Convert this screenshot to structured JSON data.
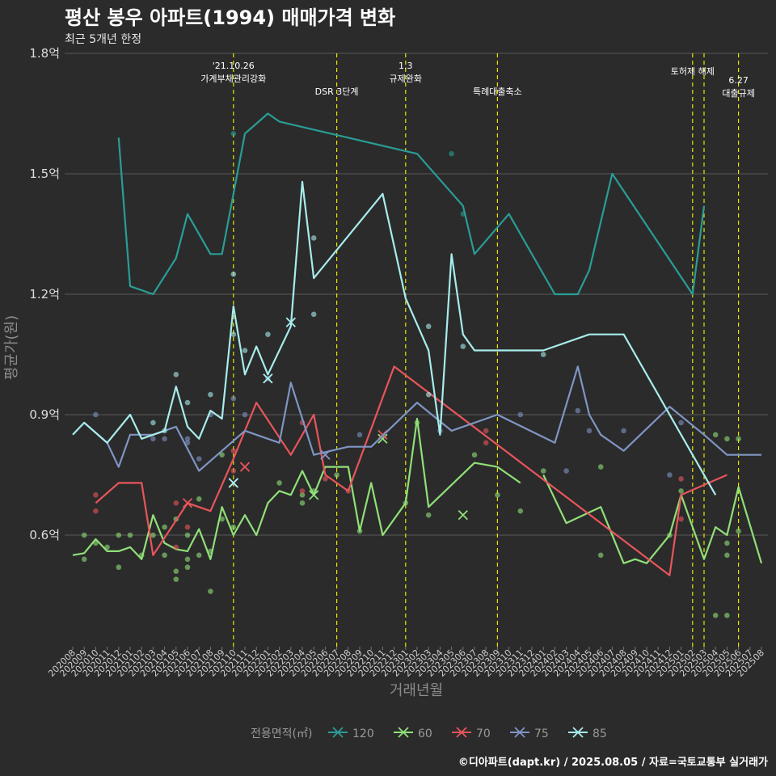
{
  "chart_data": {
    "type": "line",
    "title": "평산 봉우 아파트(1994) 매매가격 변화",
    "subtitle": "최근 5개년 한정",
    "xlabel": "거래년월",
    "ylabel": "평균가(원)",
    "caption": "©디아파트(dapt.kr) / 2025.08.05 / 자료=국토교통부 실거래가",
    "y_ticks": [
      {
        "value": 0.6,
        "label": "0.6억"
      },
      {
        "value": 0.9,
        "label": "0.9억"
      },
      {
        "value": 1.2,
        "label": "1.2억"
      },
      {
        "value": 1.5,
        "label": "1.5억"
      },
      {
        "value": 1.8,
        "label": "1.8억"
      }
    ],
    "ylim": [
      0.34,
      1.8
    ],
    "x_months": [
      "202008",
      "202009",
      "202010",
      "202011",
      "202012",
      "202101",
      "202102",
      "202103",
      "202104",
      "202105",
      "202106",
      "202107",
      "202108",
      "202109",
      "202110",
      "202111",
      "202112",
      "202201",
      "202202",
      "202203",
      "202204",
      "202205",
      "202206",
      "202207",
      "202208",
      "202209",
      "202210",
      "202211",
      "202212",
      "202301",
      "202302",
      "202303",
      "202304",
      "202305",
      "202306",
      "202307",
      "202308",
      "202309",
      "202310",
      "202311",
      "202312",
      "202401",
      "202402",
      "202403",
      "202404",
      "202405",
      "202406",
      "202407",
      "202408",
      "202409",
      "202410",
      "202411",
      "202412",
      "202501",
      "202502",
      "202503",
      "202504",
      "202505",
      "202506",
      "202507",
      "202508"
    ],
    "grid": true,
    "legend": {
      "title": "전용면적(㎡)",
      "position": "bottom"
    },
    "annotations": [
      {
        "x": "202110",
        "label": "'21.10.26\n가계부채관리강화",
        "level": 0
      },
      {
        "x": "202207",
        "label": "DSR 3단계",
        "level": 1
      },
      {
        "x": "202301",
        "label": "1.3\n규제완화",
        "level": 0
      },
      {
        "x": "202309",
        "label": "특례대출축소",
        "level": 1
      },
      {
        "x": "202502",
        "label": "토허제 해제",
        "level": 0
      },
      {
        "x": "202503",
        "label": "",
        "level": 0
      },
      {
        "x": "202506",
        "label": "6.27\n대출규제",
        "level": 2
      }
    ],
    "series": [
      {
        "name": "120",
        "color": "#2a9d96",
        "line": [
          [
            "202012",
            1.59
          ],
          [
            "202101",
            1.22
          ],
          [
            "202103",
            1.2
          ],
          [
            "202105",
            1.29
          ],
          [
            "202106",
            1.4
          ],
          [
            "202108",
            1.3
          ],
          [
            "202109",
            1.3
          ],
          [
            "202111",
            1.6
          ],
          [
            "202201",
            1.65
          ],
          [
            "202202",
            1.63
          ],
          [
            "202205",
            1.61
          ],
          [
            "202302",
            1.55
          ],
          [
            "202306",
            1.42
          ],
          [
            "202307",
            1.3
          ],
          [
            "202310",
            1.4
          ],
          [
            "202402",
            1.2
          ],
          [
            "202404",
            1.2
          ],
          [
            "202405",
            1.26
          ],
          [
            "202407",
            1.5
          ],
          [
            "202502",
            1.2
          ],
          [
            "202503",
            1.42
          ]
        ],
        "points": [
          [
            "202110",
            1.6
          ],
          [
            "202305",
            1.55
          ],
          [
            "202306",
            1.4
          ]
        ],
        "crosses": []
      },
      {
        "name": "60",
        "color": "#90e078",
        "line": [
          [
            "202008",
            0.55
          ],
          [
            "202009",
            0.555
          ],
          [
            "202010",
            0.59
          ],
          [
            "202011",
            0.56
          ],
          [
            "202012",
            0.56
          ],
          [
            "202101",
            0.57
          ],
          [
            "202102",
            0.54
          ],
          [
            "202103",
            0.65
          ],
          [
            "202104",
            0.58
          ],
          [
            "202105",
            0.565
          ],
          [
            "202106",
            0.56
          ],
          [
            "202107",
            0.615
          ],
          [
            "202108",
            0.54
          ],
          [
            "202109",
            0.67
          ],
          [
            "202110",
            0.6
          ],
          [
            "202111",
            0.65
          ],
          [
            "202112",
            0.6
          ],
          [
            "202201",
            0.68
          ],
          [
            "202202",
            0.71
          ],
          [
            "202203",
            0.7
          ],
          [
            "202204",
            0.76
          ],
          [
            "202205",
            0.7
          ],
          [
            "202206",
            0.77
          ],
          [
            "202207",
            0.77
          ],
          [
            "202208",
            0.77
          ],
          [
            "202209",
            0.61
          ],
          [
            "202210",
            0.73
          ],
          [
            "202211",
            0.6
          ],
          [
            "202301",
            0.68
          ],
          [
            "202302",
            0.89
          ],
          [
            "202303",
            0.67
          ],
          [
            "202307",
            0.78
          ],
          [
            "202309",
            0.77
          ],
          [
            "202311",
            0.73
          ]
        ],
        "line2": [
          [
            "202401",
            0.75
          ],
          [
            "202403",
            0.63
          ],
          [
            "202406",
            0.67
          ],
          [
            "202408",
            0.53
          ],
          [
            "202409",
            0.54
          ],
          [
            "202410",
            0.53
          ],
          [
            "202412",
            0.6
          ],
          [
            "202501",
            0.7
          ],
          [
            "202503",
            0.54
          ],
          [
            "202504",
            0.62
          ],
          [
            "202505",
            0.6
          ],
          [
            "202506",
            0.72
          ],
          [
            "202508",
            0.53
          ]
        ],
        "points": [
          [
            "202009",
            0.54
          ],
          [
            "202009",
            0.6
          ],
          [
            "202010",
            0.58
          ],
          [
            "202011",
            0.57
          ],
          [
            "202012",
            0.52
          ],
          [
            "202012",
            0.6
          ],
          [
            "202101",
            0.6
          ],
          [
            "202102",
            0.55
          ],
          [
            "202103",
            0.6
          ],
          [
            "202104",
            0.55
          ],
          [
            "202104",
            0.62
          ],
          [
            "202105",
            0.49
          ],
          [
            "202105",
            0.51
          ],
          [
            "202105",
            0.64
          ],
          [
            "202106",
            0.52
          ],
          [
            "202106",
            0.54
          ],
          [
            "202106",
            0.6
          ],
          [
            "202107",
            0.55
          ],
          [
            "202107",
            0.69
          ],
          [
            "202108",
            0.46
          ],
          [
            "202108",
            0.56
          ],
          [
            "202109",
            0.64
          ],
          [
            "202109",
            0.8
          ],
          [
            "202110",
            0.62
          ],
          [
            "202202",
            0.73
          ],
          [
            "202204",
            0.68
          ],
          [
            "202204",
            0.7
          ],
          [
            "202205",
            0.71
          ],
          [
            "202207",
            0.75
          ],
          [
            "202209",
            0.61
          ],
          [
            "202301",
            0.68
          ],
          [
            "202302",
            0.88
          ],
          [
            "202303",
            0.65
          ],
          [
            "202307",
            0.8
          ],
          [
            "202309",
            0.7
          ],
          [
            "202311",
            0.66
          ],
          [
            "202401",
            0.76
          ],
          [
            "202406",
            0.55
          ],
          [
            "202406",
            0.77
          ],
          [
            "202412",
            0.6
          ],
          [
            "202501",
            0.71
          ],
          [
            "202504",
            0.4
          ],
          [
            "202504",
            0.85
          ],
          [
            "202505",
            0.4
          ],
          [
            "202505",
            0.55
          ],
          [
            "202505",
            0.84
          ],
          [
            "202505",
            0.58
          ],
          [
            "202506",
            0.84
          ],
          [
            "202506",
            0.61
          ]
        ],
        "crosses": [
          [
            "202205",
            0.7
          ],
          [
            "202306",
            0.65
          ],
          [
            "202211",
            0.84
          ]
        ]
      },
      {
        "name": "70",
        "color": "#e8555b",
        "line": [
          [
            "202010",
            0.68
          ],
          [
            "202012",
            0.73
          ],
          [
            "202102",
            0.73
          ],
          [
            "202103",
            0.55
          ],
          [
            "202106",
            0.68
          ],
          [
            "202108",
            0.66
          ],
          [
            "202110",
            0.79
          ],
          [
            "202112",
            0.93
          ],
          [
            "202203",
            0.8
          ],
          [
            "202205",
            0.9
          ],
          [
            "202206",
            0.75
          ],
          [
            "202208",
            0.71
          ],
          [
            "202212",
            1.02
          ],
          [
            "202412",
            0.5
          ],
          [
            "202501",
            0.7
          ],
          [
            "202505",
            0.75
          ]
        ],
        "points": [
          [
            "202010",
            0.66
          ],
          [
            "202010",
            0.7
          ],
          [
            "202105",
            0.68
          ],
          [
            "202105",
            0.57
          ],
          [
            "202106",
            0.62
          ],
          [
            "202110",
            0.76
          ],
          [
            "202110",
            0.81
          ],
          [
            "202204",
            0.71
          ],
          [
            "202204",
            0.88
          ],
          [
            "202206",
            0.74
          ],
          [
            "202208",
            0.71
          ],
          [
            "202308",
            0.83
          ],
          [
            "202308",
            0.86
          ],
          [
            "202501",
            0.64
          ],
          [
            "202501",
            0.74
          ]
        ],
        "crosses": [
          [
            "202106",
            0.68
          ],
          [
            "202111",
            0.77
          ],
          [
            "202206",
            0.8
          ],
          [
            "202211",
            0.85
          ]
        ]
      },
      {
        "name": "75",
        "color": "#7f95c4",
        "line": [
          [
            "202009",
            0.88
          ],
          [
            "202011",
            0.83
          ],
          [
            "202012",
            0.77
          ],
          [
            "202101",
            0.85
          ],
          [
            "202102",
            0.85
          ],
          [
            "202103",
            0.85
          ],
          [
            "202105",
            0.87
          ],
          [
            "202107",
            0.76
          ],
          [
            "202109",
            0.81
          ],
          [
            "202111",
            0.86
          ],
          [
            "202202",
            0.83
          ],
          [
            "202203",
            0.98
          ],
          [
            "202205",
            0.8
          ],
          [
            "202208",
            0.82
          ],
          [
            "202209",
            0.82
          ],
          [
            "202210",
            0.82
          ],
          [
            "202302",
            0.93
          ],
          [
            "202305",
            0.86
          ],
          [
            "202309",
            0.9
          ],
          [
            "202402",
            0.83
          ],
          [
            "202404",
            1.02
          ],
          [
            "202405",
            0.9
          ],
          [
            "202406",
            0.85
          ],
          [
            "202408",
            0.81
          ],
          [
            "202412",
            0.92
          ],
          [
            "202503",
            0.85
          ],
          [
            "202505",
            0.8
          ],
          [
            "202508",
            0.8
          ]
        ],
        "points": [
          [
            "202010",
            0.9
          ],
          [
            "202103",
            0.84
          ],
          [
            "202104",
            0.84
          ],
          [
            "202106",
            0.84
          ],
          [
            "202106",
            0.83
          ],
          [
            "202107",
            0.79
          ],
          [
            "202108",
            0.9
          ],
          [
            "202110",
            0.94
          ],
          [
            "202111",
            0.9
          ],
          [
            "202201",
            0.99
          ],
          [
            "202209",
            0.85
          ],
          [
            "202304",
            0.86
          ],
          [
            "202311",
            0.9
          ],
          [
            "202403",
            0.76
          ],
          [
            "202404",
            0.91
          ],
          [
            "202405",
            0.86
          ],
          [
            "202408",
            0.86
          ],
          [
            "202412",
            0.75
          ],
          [
            "202501",
            0.88
          ]
        ],
        "crosses": [
          [
            "202110",
            0.73
          ],
          [
            "202201",
            0.99
          ],
          [
            "202203",
            1.13
          ],
          [
            "202206",
            0.8
          ]
        ]
      },
      {
        "name": "85",
        "color": "#a8ecec",
        "line": [
          [
            "202008",
            0.85
          ],
          [
            "202009",
            0.88
          ],
          [
            "202011",
            0.83
          ],
          [
            "202101",
            0.9
          ],
          [
            "202102",
            0.84
          ],
          [
            "202104",
            0.86
          ],
          [
            "202105",
            0.97
          ],
          [
            "202106",
            0.87
          ],
          [
            "202107",
            0.84
          ],
          [
            "202108",
            0.91
          ],
          [
            "202109",
            0.89
          ],
          [
            "202110",
            1.17
          ],
          [
            "202111",
            1.0
          ],
          [
            "202112",
            1.07
          ],
          [
            "202201",
            1.0
          ],
          [
            "202203",
            1.12
          ],
          [
            "202204",
            1.48
          ],
          [
            "202205",
            1.24
          ],
          [
            "202211",
            1.45
          ],
          [
            "202301",
            1.19
          ],
          [
            "202303",
            1.06
          ],
          [
            "202304",
            0.85
          ],
          [
            "202305",
            1.3
          ],
          [
            "202306",
            1.1
          ],
          [
            "202307",
            1.06
          ],
          [
            "202401",
            1.06
          ],
          [
            "202405",
            1.1
          ],
          [
            "202408",
            1.1
          ],
          [
            "202504",
            0.7
          ]
        ],
        "points": [
          [
            "202103",
            0.88
          ],
          [
            "202104",
            0.86
          ],
          [
            "202105",
            1.0
          ],
          [
            "202106",
            0.93
          ],
          [
            "202108",
            0.95
          ],
          [
            "202110",
            1.1
          ],
          [
            "202110",
            1.25
          ],
          [
            "202111",
            1.06
          ],
          [
            "202201",
            1.1
          ],
          [
            "202205",
            1.34
          ],
          [
            "202205",
            1.15
          ],
          [
            "202303",
            1.12
          ],
          [
            "202401",
            1.05
          ],
          [
            "202306",
            1.07
          ],
          [
            "202303",
            0.95
          ]
        ],
        "crosses": [
          [
            "202203",
            1.13
          ],
          [
            "202201",
            0.99
          ],
          [
            "202110",
            0.73
          ]
        ]
      }
    ]
  }
}
